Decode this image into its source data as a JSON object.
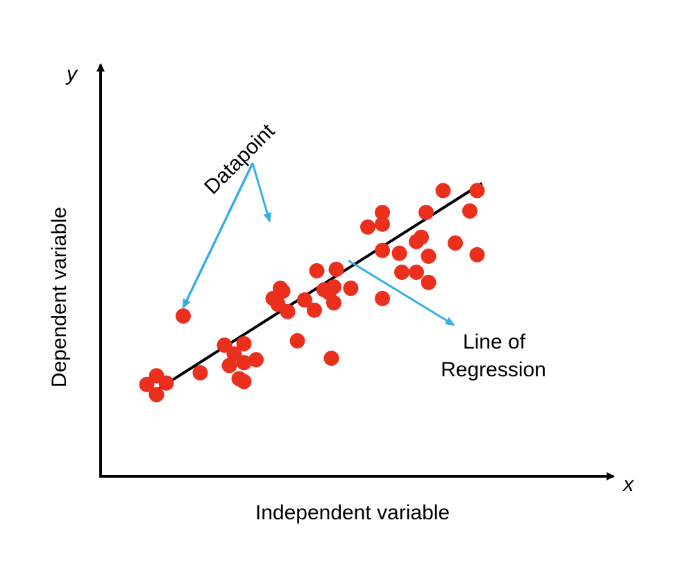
{
  "chart_data": {
    "type": "scatter",
    "title": "",
    "xlabel": "Independent variable",
    "ylabel": "Dependent variable",
    "x_axis_letter": "x",
    "y_axis_letter": "y",
    "grid": false,
    "series": [
      {
        "points": [
          [
            9.5,
            11.0
          ],
          [
            11.5,
            14.0
          ],
          [
            13.5,
            11.5
          ],
          [
            11.5,
            7.5
          ],
          [
            17.0,
            34.5
          ],
          [
            20.5,
            15.0
          ],
          [
            25.5,
            24.5
          ],
          [
            26.5,
            17.5
          ],
          [
            27.5,
            21.5
          ],
          [
            28.5,
            13.0
          ],
          [
            29.5,
            25.0
          ],
          [
            29.5,
            18.5
          ],
          [
            29.5,
            12.0
          ],
          [
            32.0,
            19.5
          ],
          [
            35.5,
            40.5
          ],
          [
            36.5,
            38.5
          ],
          [
            37.0,
            44.0
          ],
          [
            37.5,
            43.0
          ],
          [
            38.5,
            36.0
          ],
          [
            40.5,
            26.0
          ],
          [
            42.0,
            40.0
          ],
          [
            44.0,
            36.5
          ],
          [
            44.5,
            50.0
          ],
          [
            46.0,
            43.5
          ],
          [
            47.0,
            42.5
          ],
          [
            47.5,
            20.0
          ],
          [
            48.5,
            50.5
          ],
          [
            48.0,
            44.5
          ],
          [
            48.0,
            39.0
          ],
          [
            51.5,
            44.0
          ],
          [
            55.0,
            65.0
          ],
          [
            58.0,
            57.0
          ],
          [
            58.0,
            66.0
          ],
          [
            58.0,
            40.5
          ],
          [
            58.0,
            70.0
          ],
          [
            61.5,
            56.0
          ],
          [
            62.0,
            49.5
          ],
          [
            65.0,
            60.0
          ],
          [
            65.0,
            49.5
          ],
          [
            66.0,
            61.5
          ],
          [
            67.0,
            70.0
          ],
          [
            67.5,
            55.0
          ],
          [
            67.5,
            46.0
          ],
          [
            70.5,
            77.5
          ],
          [
            73.0,
            59.5
          ],
          [
            76.0,
            70.5
          ],
          [
            77.5,
            77.5
          ],
          [
            77.5,
            55.5
          ]
        ]
      }
    ],
    "regression_line": {
      "x": [
        10.0,
        78.5
      ],
      "y": [
        7.5,
        80.0
      ]
    },
    "annotations": [
      {
        "text": "Datapoint",
        "points_to": [
          [
            36.5,
            66.0
          ],
          [
            17.0,
            34.5
          ]
        ]
      },
      {
        "text": "Line of\nRegression",
        "line_1": "Line of",
        "line_2": "Regression",
        "points_to": [
          51.0,
          53.5
        ]
      }
    ],
    "colors": {
      "points": "#eb2f1d",
      "line": "#000000",
      "arrows": "#35aeea",
      "axes": "#000000"
    },
    "xlim": [
      0,
      100
    ],
    "ylim": [
      0,
      100
    ]
  }
}
